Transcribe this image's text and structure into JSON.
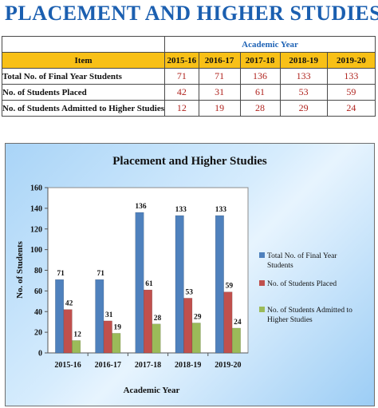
{
  "page_title": "PLACEMENT AND HIGHER STUDIES",
  "table": {
    "group_header": "Academic Year",
    "item_header": "Item",
    "years": [
      "2015-16",
      "2016-17",
      "2017-18",
      "2018-19",
      "2019-20"
    ],
    "rows": [
      {
        "label": "Total No. of Final Year Students",
        "values": [
          "71",
          "71",
          "136",
          "133",
          "133"
        ]
      },
      {
        "label": "No. of Students Placed",
        "values": [
          "42",
          "31",
          "61",
          "53",
          "59"
        ]
      },
      {
        "label": "No. of Students Admitted to Higher Studies",
        "values": [
          "12",
          "19",
          "28",
          "29",
          "24"
        ]
      }
    ]
  },
  "chart_data": {
    "type": "bar",
    "title": "Placement and Higher Studies",
    "xlabel": "Academic Year",
    "ylabel": "No. of Students",
    "categories": [
      "2015-16",
      "2016-17",
      "2017-18",
      "2018-19",
      "2019-20"
    ],
    "series": [
      {
        "name": "Total No. of Final Year Students",
        "values": [
          71,
          71,
          136,
          133,
          133
        ],
        "color": "#4f81bd"
      },
      {
        "name": "No. of Students Placed",
        "values": [
          42,
          31,
          61,
          53,
          59
        ],
        "color": "#c0504d"
      },
      {
        "name": "No. of Students Admitted to Higher Studies",
        "values": [
          12,
          19,
          28,
          29,
          24
        ],
        "color": "#9bbb59"
      }
    ],
    "ylim": [
      0,
      160
    ],
    "yticks": [
      0,
      20,
      40,
      60,
      80,
      100,
      120,
      140,
      160
    ],
    "grid": false,
    "legend_position": "right"
  }
}
